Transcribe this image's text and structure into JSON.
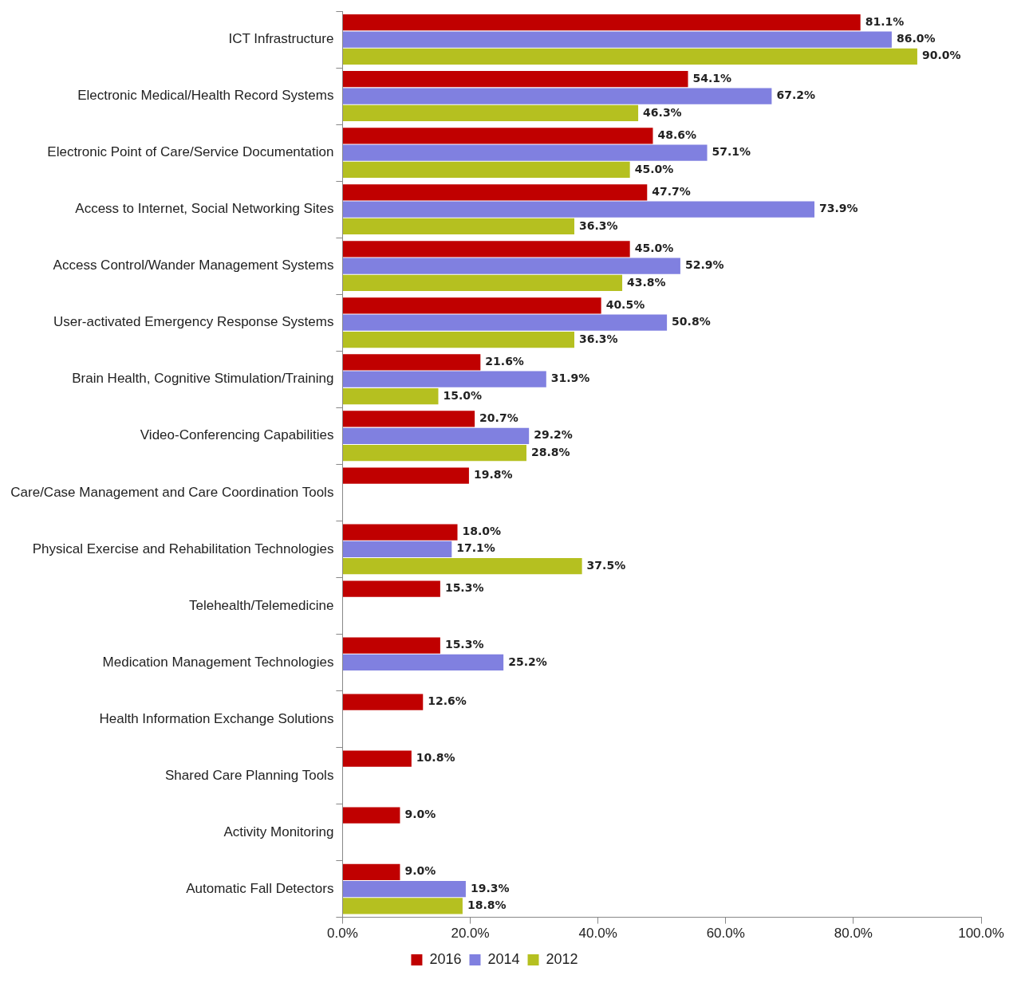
{
  "chart_data": {
    "type": "bar",
    "orientation": "horizontal",
    "categories": [
      "ICT Infrastructure",
      "Electronic Medical/Health Record Systems",
      "Electronic Point of Care/Service Documentation",
      "Access to Internet, Social Networking Sites",
      "Access Control/Wander Management Systems",
      "User-activated Emergency Response Systems",
      "Brain Health, Cognitive Stimulation/Training",
      "Video-Conferencing Capabilities",
      "Care/Case Management and Care Coordination Tools",
      "Physical Exercise and Rehabilitation Technologies",
      "Telehealth/Telemedicine",
      "Medication Management Technologies",
      "Health Information Exchange Solutions",
      "Shared Care Planning Tools",
      "Activity Monitoring",
      "Automatic Fall Detectors"
    ],
    "series": [
      {
        "name": "2016",
        "color": "#c00000",
        "values": [
          81.1,
          54.1,
          48.6,
          47.7,
          45.0,
          40.5,
          21.6,
          20.7,
          19.8,
          18.0,
          15.3,
          15.3,
          12.6,
          10.8,
          9.0,
          9.0
        ],
        "value_labels": [
          "81.1%",
          "54.1%",
          "48.6%",
          "47.7%",
          "45.0%",
          "40.5%",
          "21.6%",
          "20.7%",
          "19.8%",
          "18.0%",
          "15.3%",
          "15.3%",
          "12.6%",
          "10.8%",
          "9.0%",
          "9.0%"
        ]
      },
      {
        "name": "2014",
        "color": "#8080e0",
        "values": [
          86.0,
          67.2,
          57.1,
          73.9,
          52.9,
          50.8,
          31.9,
          29.2,
          null,
          17.1,
          null,
          25.2,
          null,
          null,
          null,
          19.3
        ],
        "value_labels": [
          "86.0%",
          "67.2%",
          "57.1%",
          "73.9%",
          "52.9%",
          "50.8%",
          "31.9%",
          "29.2%",
          null,
          "17.1%",
          null,
          "25.2%",
          null,
          null,
          null,
          "19.3%"
        ]
      },
      {
        "name": "2012",
        "color": "#b5c020",
        "values": [
          90.0,
          46.3,
          45.0,
          36.3,
          43.8,
          36.3,
          15.0,
          28.8,
          null,
          37.5,
          null,
          null,
          null,
          null,
          null,
          18.8
        ],
        "value_labels": [
          "90.0%",
          "46.3%",
          "45.0%",
          "36.3%",
          "43.8%",
          "36.3%",
          "15.0%",
          "28.8%",
          null,
          "37.5%",
          null,
          null,
          null,
          null,
          null,
          "18.8%"
        ]
      }
    ],
    "xlim": [
      0,
      100
    ],
    "xticks": [
      {
        "value": 0,
        "label": "0.0%"
      },
      {
        "value": 20,
        "label": "20.0%"
      },
      {
        "value": 40,
        "label": "40.0%"
      },
      {
        "value": 60,
        "label": "60.0%"
      },
      {
        "value": 80,
        "label": "80.0%"
      },
      {
        "value": 100,
        "label": "100.0%"
      }
    ],
    "grid": false,
    "legend": "bottom"
  }
}
